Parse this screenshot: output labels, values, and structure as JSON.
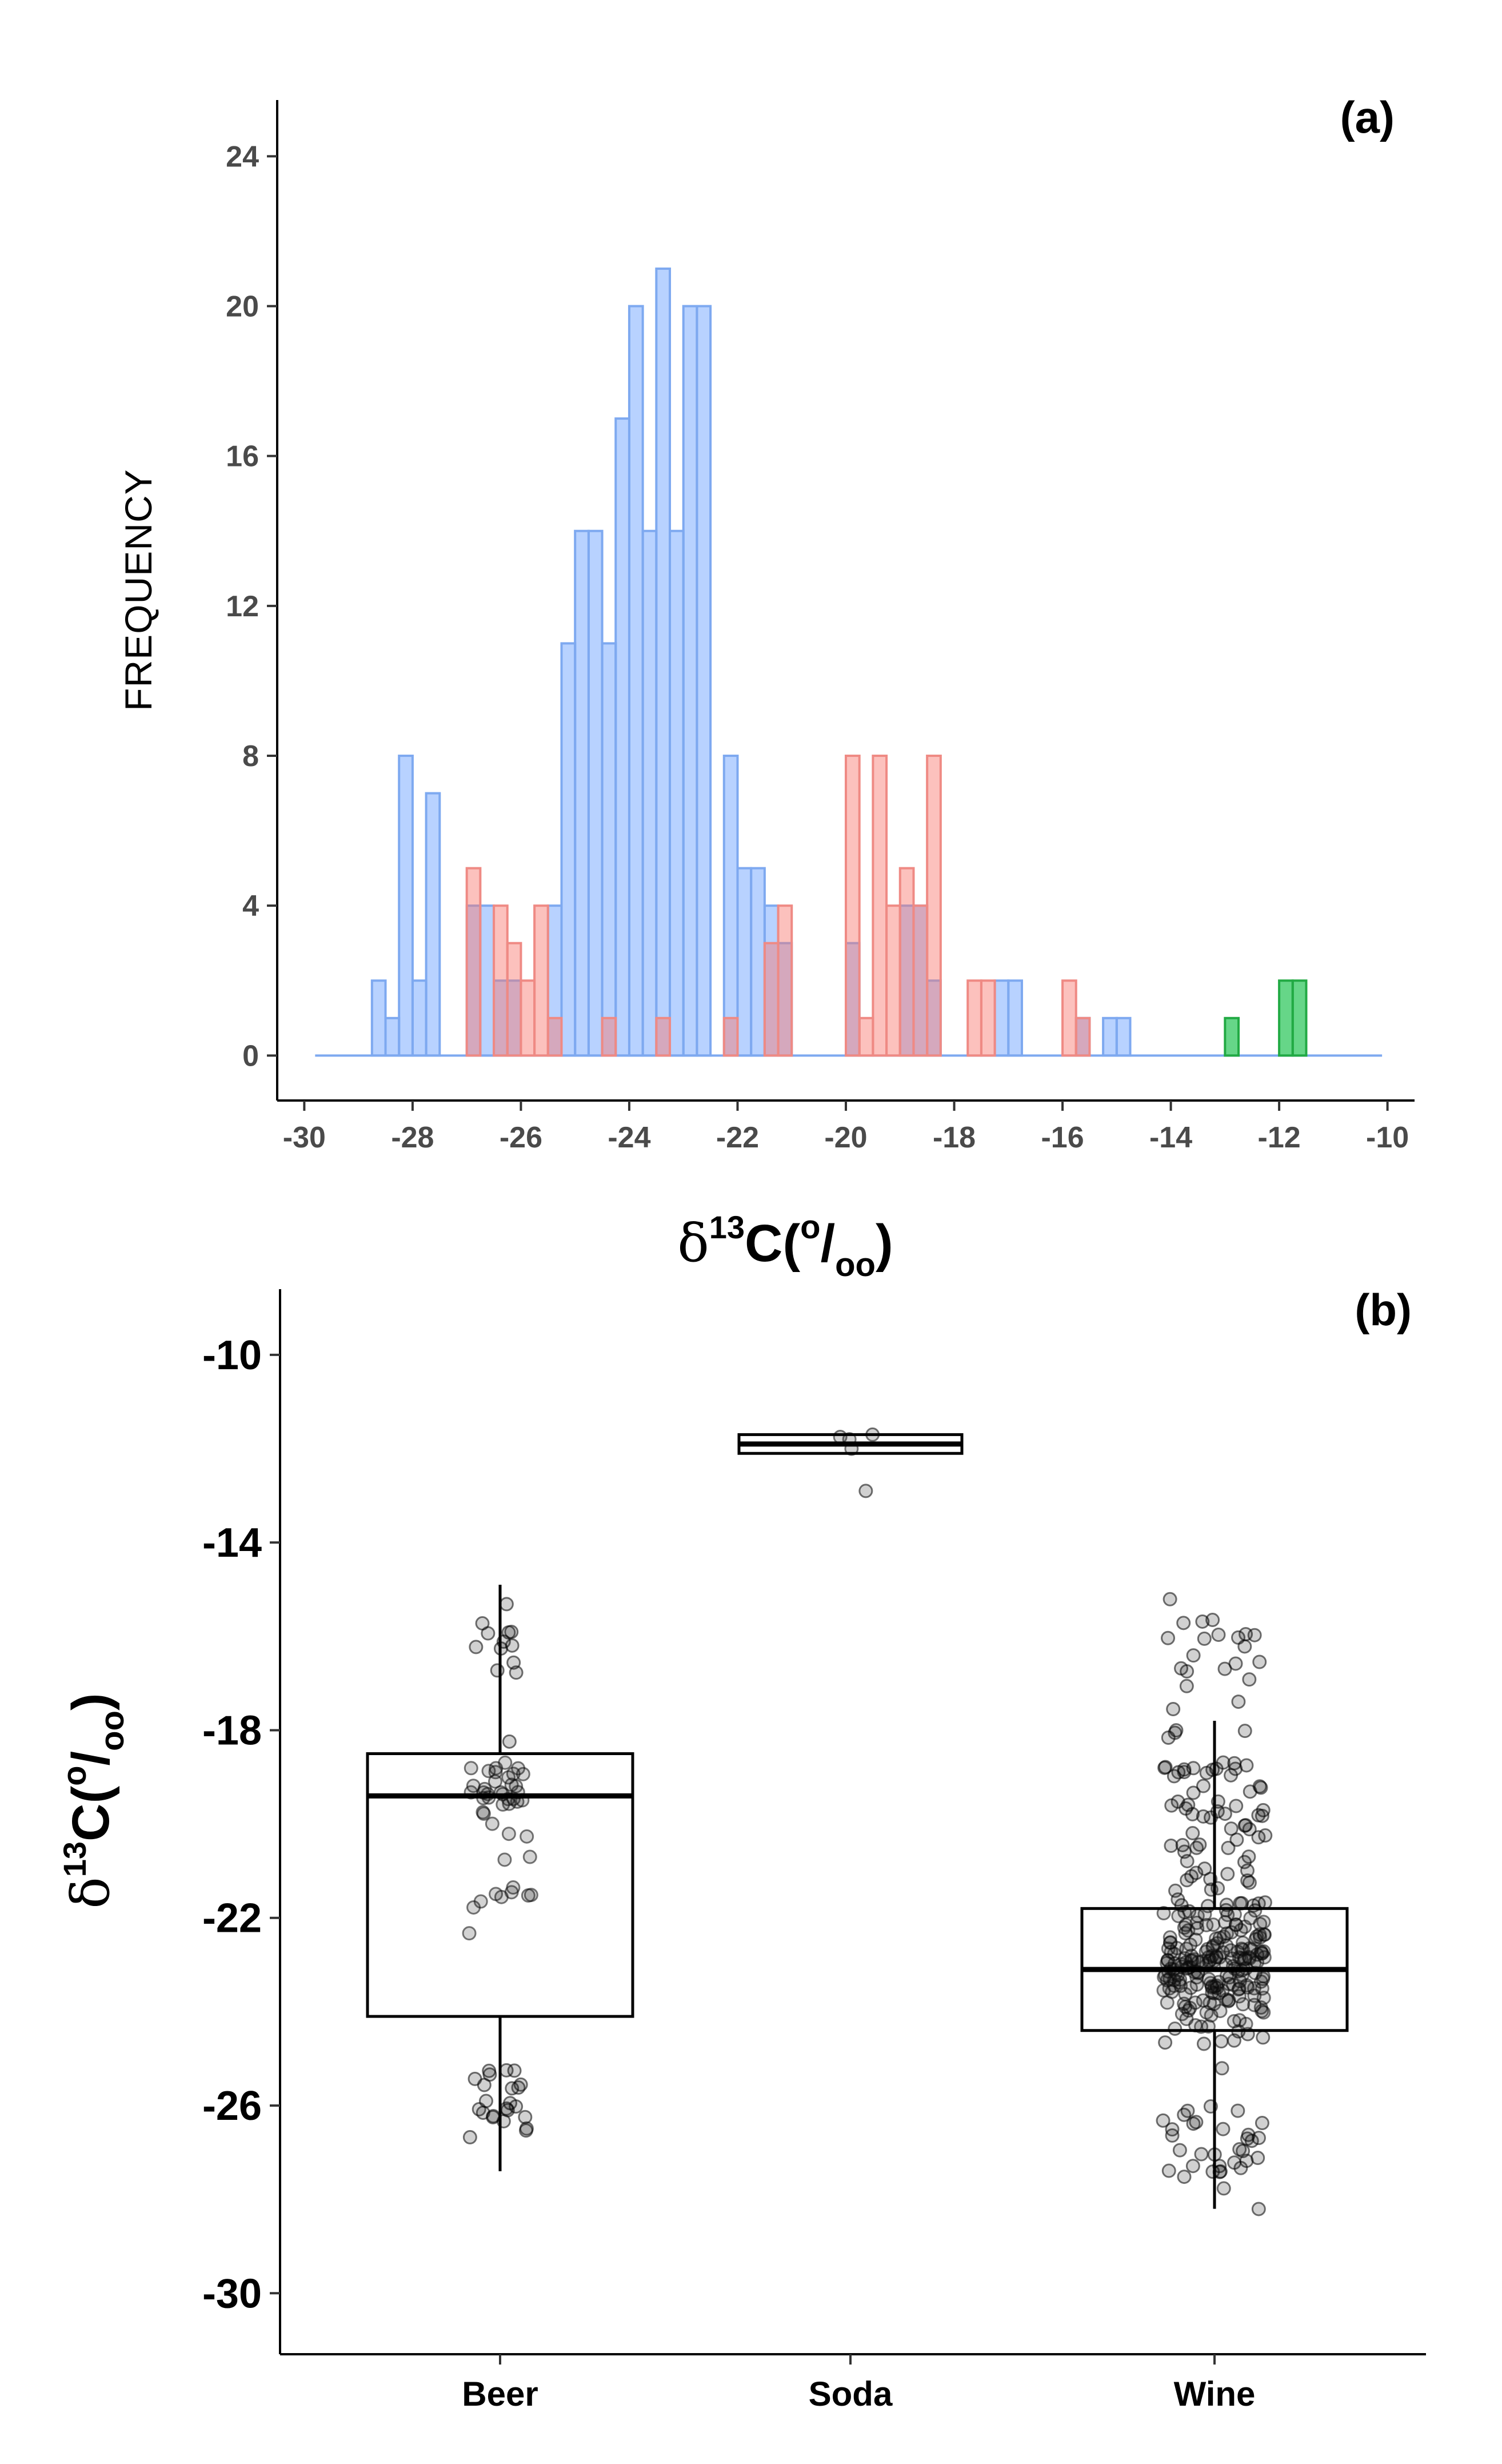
{
  "chart_data": [
    {
      "type": "bar",
      "subtype": "overlapping-histogram",
      "panel_label": "(a)",
      "ylabel": "FREQUENCY",
      "xlabel": {
        "delta": "δ",
        "sup": "13",
        "main": "C(",
        "frac_sup": "o",
        "slash": "/",
        "frac_sub": "oo",
        "close": ")"
      },
      "xlim": [
        -30.5,
        -9.5
      ],
      "ylim": [
        -1.2,
        25.5
      ],
      "xticks": [
        "-30",
        "-28",
        "-26",
        "-24",
        "-22",
        "-20",
        "-18",
        "-16",
        "-14",
        "-12",
        "-10"
      ],
      "yticks": [
        "0",
        "4",
        "8",
        "12",
        "16",
        "20",
        "24"
      ],
      "bin_width": 0.25,
      "series": [
        {
          "name": "Wine",
          "color": "#7ea9f0",
          "fill": "rgba(97,156,255,0.45)",
          "counts": [
            2,
            1,
            8,
            2,
            7,
            4,
            4,
            2,
            2,
            4,
            11,
            14,
            14,
            11,
            17,
            20,
            14,
            21,
            14,
            20,
            20,
            8,
            5,
            5,
            4,
            3,
            3,
            4,
            4,
            2,
            2,
            2,
            1,
            1,
            1
          ]
        },
        {
          "name": "Beer",
          "color": "#ef8a84",
          "fill": "rgba(248,118,109,0.45)",
          "counts": [
            5,
            4,
            3,
            2,
            4,
            1,
            1,
            1,
            1,
            3,
            4,
            8,
            1,
            8,
            4,
            5,
            4,
            8,
            2,
            2,
            2,
            1
          ]
        },
        {
          "name": "Soda",
          "color": "#22aa44",
          "fill": "rgba(0,186,56,0.60)",
          "counts": [
            1,
            2,
            2
          ]
        }
      ]
    },
    {
      "type": "box",
      "panel_label": "(b)",
      "ylabel": {
        "delta": "δ",
        "sup": "13",
        "main": "C(",
        "frac_sup": "o",
        "slash": "/",
        "frac_sub": "oo",
        "close": ")"
      },
      "xlabel": "",
      "ylim": [
        -31.3,
        -8.6
      ],
      "yticks": [
        "-10",
        "-14",
        "-18",
        "-22",
        "-26",
        "-30"
      ],
      "categories": [
        "Beer",
        "Soda",
        "Wine"
      ],
      "boxes": [
        {
          "name": "Beer",
          "min": -27.4,
          "q1": -24.1,
          "median": -19.4,
          "q3": -18.5,
          "max": -14.9
        },
        {
          "name": "Soda",
          "min": -12.1,
          "q1": -12.1,
          "median": -11.9,
          "q3": -11.7,
          "max": -11.7
        },
        {
          "name": "Wine",
          "min": -28.2,
          "q1": -24.4,
          "median": -23.1,
          "q3": -21.8,
          "max": -17.8
        }
      ]
    }
  ]
}
